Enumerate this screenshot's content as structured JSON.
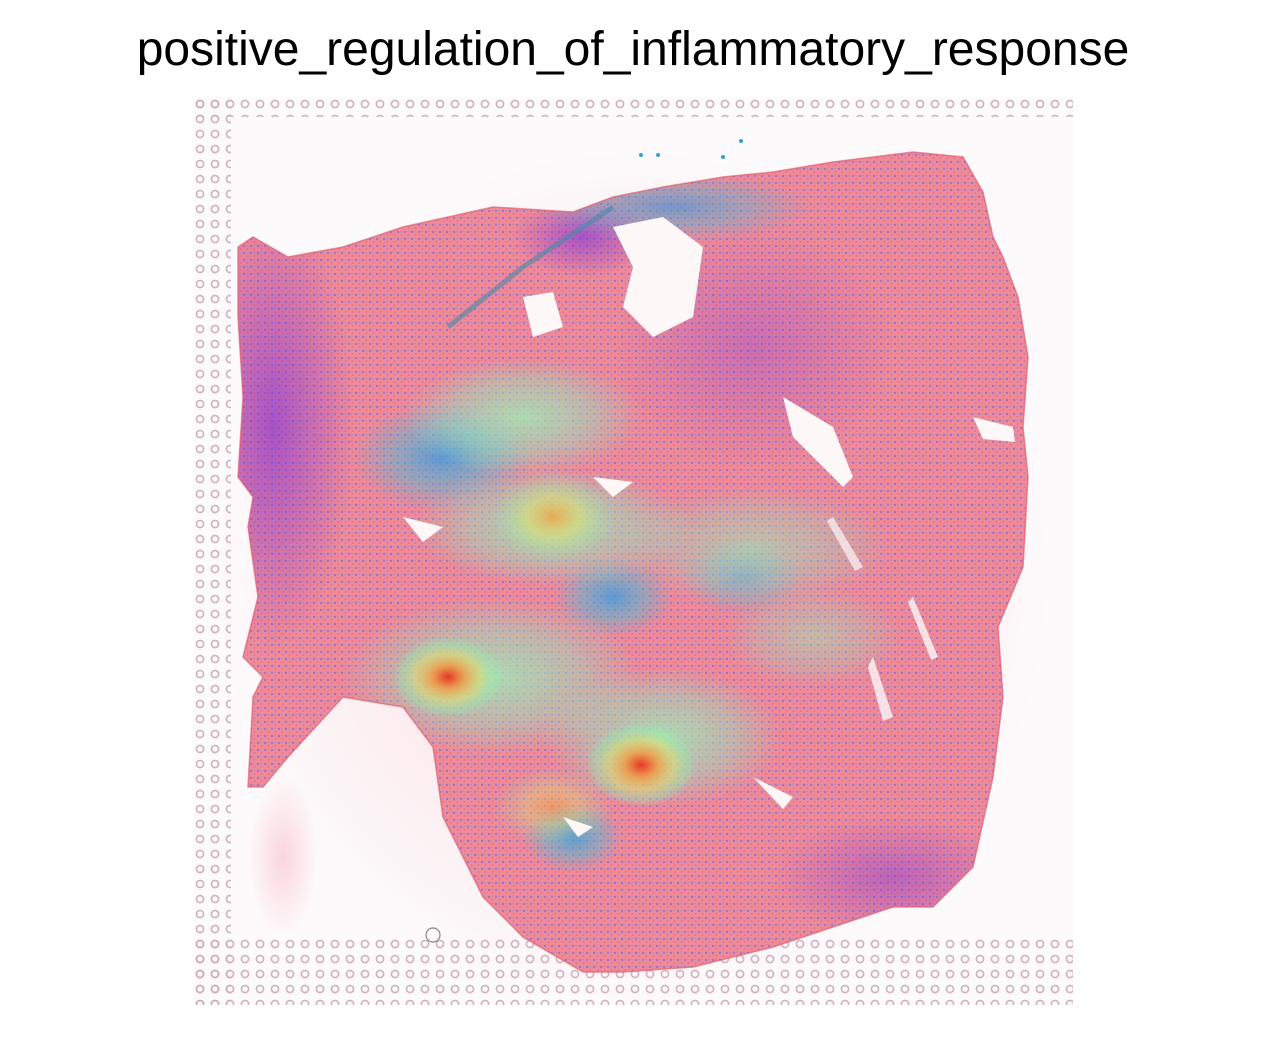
{
  "title": "positive_regulation_of_inflammatory_response",
  "image": {
    "kind": "spatial-transcriptomics-tissue-overlay",
    "colormap": [
      "#7b2fe0",
      "#3a7bff",
      "#34c6e0",
      "#8ff0b0",
      "#e0e070",
      "#f59a40",
      "#e8301c"
    ],
    "tissue_base_color": "#ef8a98",
    "fiducial_color": "#c8aab8",
    "background_color": "#ffffff"
  }
}
